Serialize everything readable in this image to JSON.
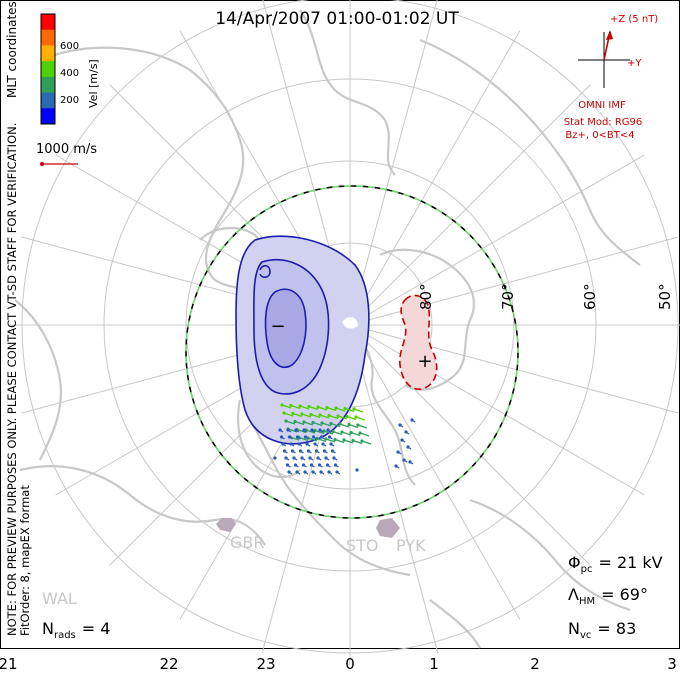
{
  "title": "14/Apr/2007 01:00-01:02 UT",
  "coord_label": "MLT coordinates",
  "colorbar": {
    "title": "Vel [m/s]",
    "ticks": [
      "600",
      "400",
      "200"
    ],
    "colors": [
      "#ff0000",
      "#ff6a00",
      "#ffb000",
      "#4fd000",
      "#2ea05a",
      "#2a6ab0",
      "#0000ff"
    ]
  },
  "scale_vector_label": "1000 m/s",
  "latitude_labels": [
    "80°",
    "70°",
    "60°",
    "50°"
  ],
  "mlt_labels": [
    "21",
    "22",
    "23",
    "0",
    "1",
    "2",
    "3"
  ],
  "station_labels": [
    "GBR",
    "STO",
    "PYK",
    "WAL"
  ],
  "imf": {
    "z_label": "+Z (5 nT)",
    "y_label": "+Y",
    "source": "OMNI IMF",
    "model": "Stat Mod: RG96",
    "condition": "Bz+, 0<BT<4"
  },
  "note_line1": "NOTE: FOR PREVIEW PURPOSES ONLY. PLEASE CONTACT VT-SD STAFF FOR VERIFICATION.",
  "note_line2": "FitOrder: 8, mapEX format",
  "stats": {
    "phi_symbol": "Φ",
    "phi_sub": "pc",
    "phi_value": "= 21 kV",
    "lambda_symbol": "Λ",
    "lambda_sub": "HM",
    "lambda_value": "= 69°",
    "nvc_symbol": "N",
    "nvc_sub": "vc",
    "nvc_value": "= 83",
    "nrads_symbol": "N",
    "nrads_sub": "rads",
    "nrads_value": "= 4"
  },
  "symbols": {
    "minus": "−",
    "plus": "+"
  },
  "colors": {
    "continent": "#c8c8c8",
    "grid": "#c8c8c8",
    "negative_cell": "#1c1cb0",
    "positive_cell": "#c80000",
    "boundary_green": "#6cd26c",
    "imf_red": "#cc0000"
  }
}
